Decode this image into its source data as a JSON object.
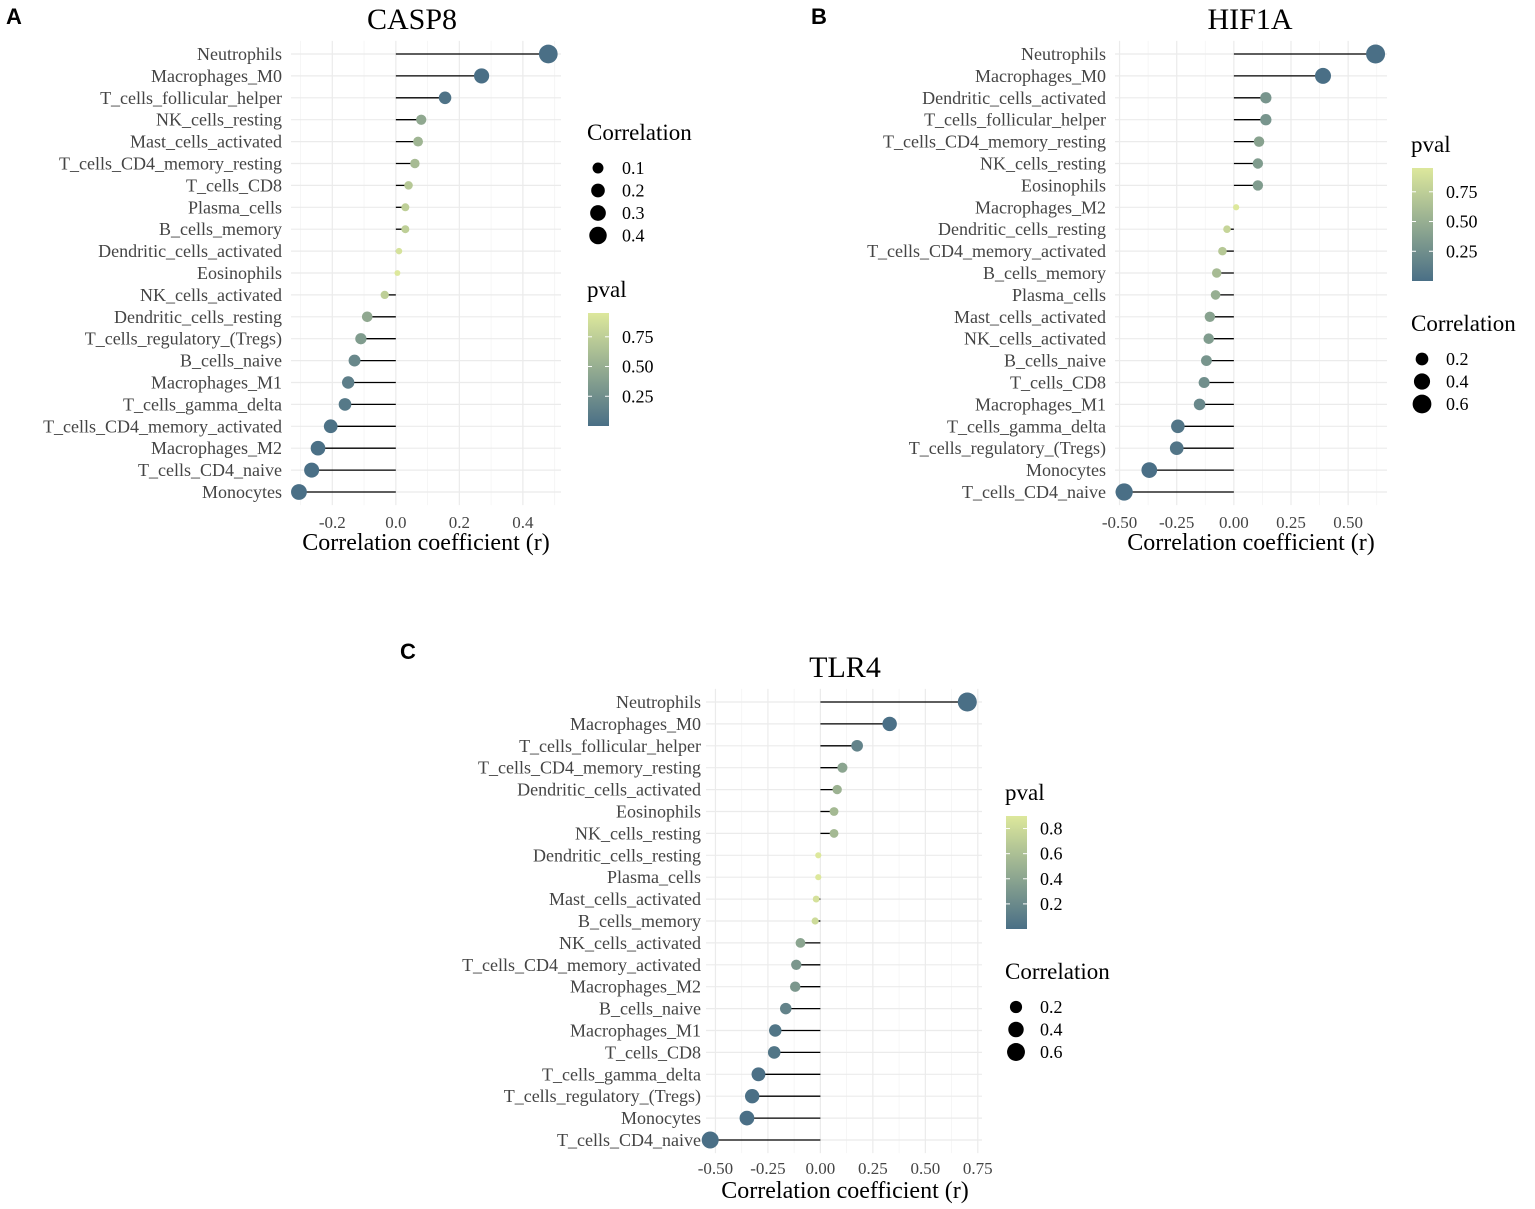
{
  "palette": {
    "low": "#4a6f86",
    "high": "#dde89c"
  },
  "chart_data": [
    {
      "type": "lollipop",
      "panel_label": "A",
      "title": "CASP8",
      "xlabel": "Correlation coefficient (r)",
      "xlim": [
        -0.33,
        0.52
      ],
      "xticks": [
        -0.2,
        0.0,
        0.2,
        0.4
      ],
      "xtick_labels": [
        "-0.2",
        "0.0",
        "0.2",
        "0.4"
      ],
      "categories": [
        "Neutrophils",
        "Macrophages_M0",
        "T_cells_follicular_helper",
        "NK_cells_resting",
        "Mast_cells_activated",
        "T_cells_CD4_memory_resting",
        "T_cells_CD8",
        "Plasma_cells",
        "B_cells_memory",
        "Dendritic_cells_activated",
        "Eosinophils",
        "NK_cells_activated",
        "Dendritic_cells_resting",
        "T_cells_regulatory_(Tregs)",
        "B_cells_naive",
        "Macrophages_M1",
        "T_cells_gamma_delta",
        "T_cells_CD4_memory_activated",
        "Macrophages_M2",
        "T_cells_CD4_naive",
        "Monocytes"
      ],
      "values": [
        0.48,
        0.27,
        0.155,
        0.08,
        0.07,
        0.06,
        0.04,
        0.03,
        0.03,
        0.01,
        0.005,
        -0.035,
        -0.09,
        -0.11,
        -0.13,
        -0.15,
        -0.16,
        -0.205,
        -0.245,
        -0.265,
        -0.305
      ],
      "pvals": [
        0.0,
        0.001,
        0.03,
        0.45,
        0.55,
        0.6,
        0.7,
        0.75,
        0.75,
        0.9,
        0.95,
        0.75,
        0.45,
        0.35,
        0.2,
        0.12,
        0.08,
        0.02,
        0.004,
        0.002,
        0.0
      ],
      "color_min": 0.0,
      "color_max": 0.95,
      "legend_order": [
        "size",
        "color"
      ],
      "size_legend": {
        "title": "Correlation",
        "values": [
          0.1,
          0.2,
          0.3,
          0.4
        ],
        "labels": [
          "0.1",
          "0.2",
          "0.3",
          "0.4"
        ],
        "max_value": 0.5
      },
      "color_legend": {
        "title": "pval",
        "ticks": [
          0.25,
          0.5,
          0.75
        ],
        "labels": [
          "0.25",
          "0.50",
          "0.75"
        ]
      }
    },
    {
      "type": "lollipop",
      "panel_label": "B",
      "title": "HIF1A",
      "xlabel": "Correlation coefficient (r)",
      "xlim": [
        -0.52,
        0.67
      ],
      "xticks": [
        -0.5,
        -0.25,
        0.0,
        0.25,
        0.5
      ],
      "xtick_labels": [
        "-0.50",
        "-0.25",
        "0.00",
        "0.25",
        "0.50"
      ],
      "categories": [
        "Neutrophils",
        "Macrophages_M0",
        "Dendritic_cells_activated",
        "T_cells_follicular_helper",
        "T_cells_CD4_memory_resting",
        "NK_cells_resting",
        "Eosinophils",
        "Macrophages_M2",
        "Dendritic_cells_resting",
        "T_cells_CD4_memory_activated",
        "B_cells_memory",
        "Plasma_cells",
        "Mast_cells_activated",
        "NK_cells_activated",
        "B_cells_naive",
        "T_cells_CD8",
        "Macrophages_M1",
        "T_cells_gamma_delta",
        "T_cells_regulatory_(Tregs)",
        "Monocytes",
        "T_cells_CD4_naive"
      ],
      "values": [
        0.62,
        0.39,
        0.14,
        0.14,
        0.11,
        0.105,
        0.105,
        0.01,
        -0.03,
        -0.05,
        -0.075,
        -0.08,
        -0.105,
        -0.11,
        -0.12,
        -0.13,
        -0.15,
        -0.245,
        -0.25,
        -0.37,
        -0.48
      ],
      "pvals": [
        0.0,
        0.001,
        0.3,
        0.3,
        0.4,
        0.35,
        0.35,
        0.95,
        0.8,
        0.7,
        0.6,
        0.5,
        0.4,
        0.35,
        0.3,
        0.25,
        0.2,
        0.05,
        0.05,
        0.003,
        0.0
      ],
      "color_min": 0.0,
      "color_max": 0.95,
      "legend_order": [
        "color",
        "size"
      ],
      "size_legend": {
        "title": "Correlation",
        "values": [
          0.2,
          0.4,
          0.6
        ],
        "labels": [
          "0.2",
          "0.4",
          "0.6"
        ],
        "max_value": 0.62
      },
      "color_legend": {
        "title": "pval",
        "ticks": [
          0.25,
          0.5,
          0.75
        ],
        "labels": [
          "0.25",
          "0.50",
          "0.75"
        ]
      }
    },
    {
      "type": "lollipop",
      "panel_label": "C",
      "title": "TLR4",
      "xlabel": "Correlation coefficient (r)",
      "xlim": [
        -0.545,
        0.77
      ],
      "xticks": [
        -0.5,
        -0.25,
        0.0,
        0.25,
        0.5,
        0.75
      ],
      "xtick_labels": [
        "-0.50",
        "-0.25",
        "0.00",
        "0.25",
        "0.50",
        "0.75"
      ],
      "categories": [
        "Neutrophils",
        "Macrophages_M0",
        "T_cells_follicular_helper",
        "T_cells_CD4_memory_resting",
        "Dendritic_cells_activated",
        "Eosinophils",
        "NK_cells_resting",
        "Dendritic_cells_resting",
        "Plasma_cells",
        "Mast_cells_activated",
        "B_cells_memory",
        "NK_cells_activated",
        "T_cells_CD4_memory_activated",
        "Macrophages_M2",
        "B_cells_naive",
        "Macrophages_M1",
        "T_cells_CD8",
        "T_cells_gamma_delta",
        "T_cells_regulatory_(Tregs)",
        "Monocytes",
        "T_cells_CD4_naive"
      ],
      "values": [
        0.7,
        0.33,
        0.175,
        0.105,
        0.08,
        0.065,
        0.065,
        -0.01,
        -0.01,
        -0.02,
        -0.025,
        -0.095,
        -0.115,
        -0.12,
        -0.165,
        -0.215,
        -0.22,
        -0.295,
        -0.325,
        -0.35,
        -0.525
      ],
      "pvals": [
        0.0,
        0.001,
        0.15,
        0.4,
        0.5,
        0.55,
        0.55,
        0.9,
        0.9,
        0.85,
        0.8,
        0.4,
        0.3,
        0.3,
        0.15,
        0.05,
        0.05,
        0.01,
        0.005,
        0.003,
        0.0
      ],
      "color_min": 0.0,
      "color_max": 0.9,
      "legend_order": [
        "color",
        "size"
      ],
      "size_legend": {
        "title": "Correlation",
        "values": [
          0.2,
          0.4,
          0.6
        ],
        "labels": [
          "0.2",
          "0.4",
          "0.6"
        ],
        "max_value": 0.7
      },
      "color_legend": {
        "title": "pval",
        "ticks": [
          0.2,
          0.4,
          0.6,
          0.8
        ],
        "labels": [
          "0.2",
          "0.4",
          "0.6",
          "0.8"
        ]
      }
    }
  ]
}
